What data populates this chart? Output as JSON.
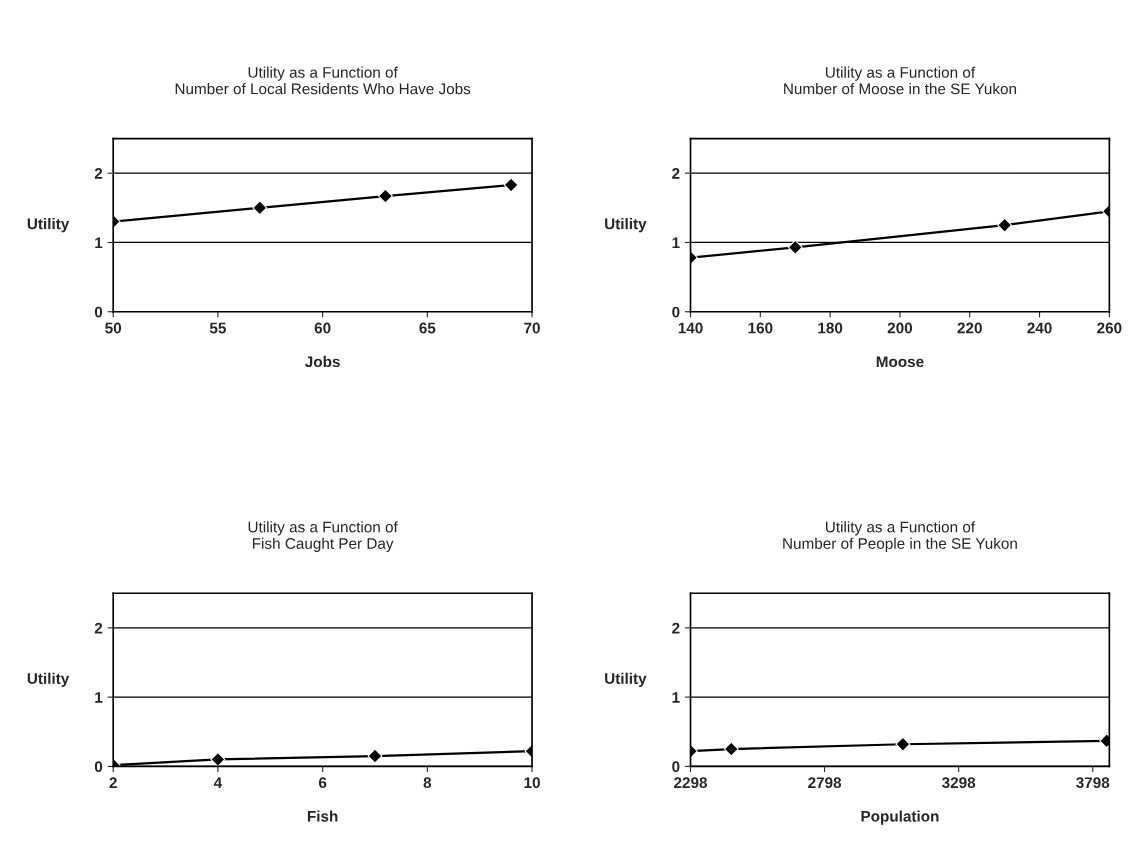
{
  "chart_data": [
    {
      "type": "line",
      "title": "Utility as a Function of\nNumber of Local Residents Who Have Jobs",
      "xlabel": "Jobs",
      "ylabel": "Utility",
      "x": [
        50,
        57,
        63,
        69
      ],
      "series": [
        {
          "color": "#000000",
          "values": [
            1.3,
            1.5,
            1.67,
            1.83
          ]
        }
      ],
      "xlim": [
        50,
        70
      ],
      "xticks": [
        50,
        55,
        60,
        65,
        70
      ],
      "ylim": [
        0,
        2.5
      ],
      "yticks": [
        0,
        1,
        2
      ],
      "grid": "y",
      "marker": "diamond",
      "line_style": "solid",
      "legend": false
    },
    {
      "type": "line",
      "title": "Utility as a Function of\nNumber of Moose in the SE Yukon",
      "xlabel": "Moose",
      "ylabel": "Utility",
      "x": [
        140,
        170,
        230,
        260
      ],
      "series": [
        {
          "color": "#000000",
          "values": [
            0.78,
            0.93,
            1.25,
            1.45
          ]
        }
      ],
      "xlim": [
        140,
        260
      ],
      "xticks": [
        140,
        160,
        180,
        200,
        220,
        240,
        260
      ],
      "ylim": [
        0,
        2.5
      ],
      "yticks": [
        0,
        1,
        2
      ],
      "grid": "y",
      "marker": "diamond",
      "line_style": "solid",
      "legend": false
    },
    {
      "type": "line",
      "title": "Utility as a Function of\nFish Caught Per Day",
      "xlabel": "Fish",
      "ylabel": "Utility",
      "x": [
        2,
        4,
        7,
        10
      ],
      "series": [
        {
          "color": "#000000",
          "values": [
            0.02,
            0.1,
            0.15,
            0.22
          ]
        }
      ],
      "xlim": [
        2,
        10
      ],
      "xticks": [
        2,
        4,
        6,
        8,
        10
      ],
      "ylim": [
        0,
        2.5
      ],
      "yticks": [
        0,
        1,
        2
      ],
      "grid": "y",
      "marker": "diamond",
      "line_style": "solid",
      "legend": false
    },
    {
      "type": "line",
      "title": "Utility as a Function of\nNumber of People in the SE Yukon",
      "xlabel": "Population",
      "ylabel": "Utility",
      "x": [
        2298,
        2450,
        3090,
        3850
      ],
      "series": [
        {
          "color": "#000000",
          "values": [
            0.22,
            0.25,
            0.32,
            0.37
          ]
        }
      ],
      "xlim": [
        2298,
        3860
      ],
      "xticks": [
        2298,
        2798,
        3298,
        3798
      ],
      "ylim": [
        0,
        2.5
      ],
      "yticks": [
        0,
        1,
        2
      ],
      "grid": "y",
      "marker": "diamond",
      "line_style": "solid",
      "legend": false
    }
  ]
}
